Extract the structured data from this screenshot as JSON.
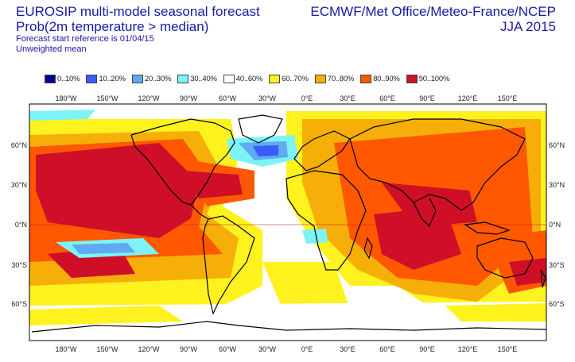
{
  "title_left": {
    "line1": "EUROSIP multi-model seasonal forecast",
    "line2": "Prob(2m temperature > median)",
    "line3": "Forecast start reference is 01/04/15",
    "line4": "Unweighted mean"
  },
  "title_right": {
    "line1": "ECMWF/Met Office/Meteo-France/NCEP",
    "line2": "JJA 2015"
  },
  "legend": [
    {
      "label": "0..10%",
      "color": "#00008f"
    },
    {
      "label": "10..20%",
      "color": "#3a5cff"
    },
    {
      "label": "20..30%",
      "color": "#5faaf0"
    },
    {
      "label": "30..40%",
      "color": "#7cf4f7"
    },
    {
      "label": "40..60%",
      "color": "#ffffff"
    },
    {
      "label": "60..70%",
      "color": "#fff21e"
    },
    {
      "label": "70..80%",
      "color": "#f6ae08"
    },
    {
      "label": "80..90%",
      "color": "#ff5800"
    },
    {
      "label": "90..100%",
      "color": "#cf0f28"
    }
  ],
  "lon_labels": [
    "180°W",
    "150°W",
    "120°W",
    "90°W",
    "60°W",
    "30°W",
    "0°E",
    "30°E",
    "60°E",
    "90°E",
    "120°E",
    "150°E"
  ],
  "lat_labels": [
    "60°N",
    "30°N",
    "0°N",
    "30°S",
    "60°S"
  ]
}
